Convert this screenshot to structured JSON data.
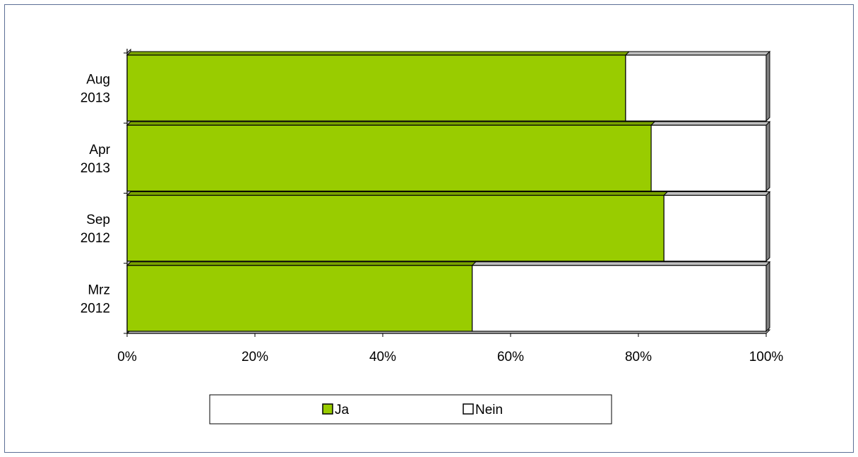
{
  "chart_data": {
    "type": "bar",
    "orientation": "horizontal",
    "stacked": "percent",
    "style": "3d",
    "categories": [
      [
        "Aug",
        "2013"
      ],
      [
        "Apr",
        "2013"
      ],
      [
        "Sep",
        "2012"
      ],
      [
        "Mrz",
        "2012"
      ]
    ],
    "series": [
      {
        "name": "Ja",
        "color": "#99cc00",
        "values": [
          78,
          82,
          84,
          54
        ]
      },
      {
        "name": "Nein",
        "color": "#ffffff",
        "values": [
          22,
          18,
          16,
          46
        ]
      }
    ],
    "xlim": [
      0,
      100
    ],
    "xticks": [
      "0%",
      "20%",
      "40%",
      "60%",
      "80%",
      "100%"
    ],
    "title": "",
    "xlabel": "",
    "ylabel": "",
    "grid": false,
    "legend_position": "bottom"
  }
}
